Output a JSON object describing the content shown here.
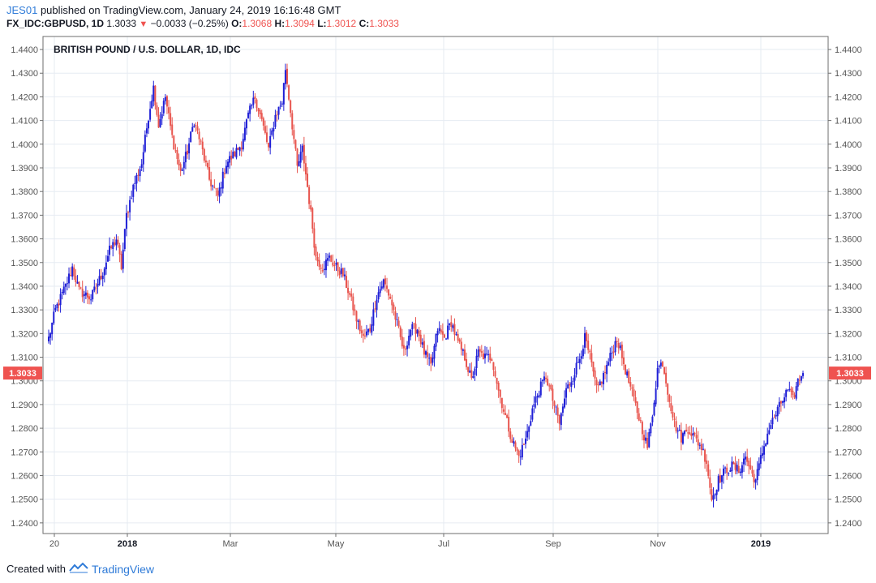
{
  "header": {
    "user": "JES01",
    "published_text": "published on TradingView.com, January 24, 2019 16:16:48 GMT",
    "symbol": "FX_IDC:GBPUSD, 1D",
    "last": "1.3033",
    "change": "−0.0033 (−0.25%)",
    "o_label": "O:",
    "o_value": "1.3068",
    "h_label": "H:",
    "h_value": "1.3094",
    "l_label": "L:",
    "l_value": "1.3012",
    "c_label": "C:",
    "c_value": "1.3033"
  },
  "footer": {
    "created_with": "Created with",
    "brand": "TradingView"
  },
  "colors": {
    "up": "#1f1fd6",
    "down": "#e8554e",
    "grid": "#e6ebf2",
    "axis": "#555555",
    "price_tag": "#ef5350"
  },
  "chart_data": {
    "type": "candlestick",
    "title": "BRITISH POUND / U.S. DOLLAR, 1D, IDC",
    "ylim": [
      1.2355,
      1.4455
    ],
    "y_ticks": [
      "1.2400",
      "1.2500",
      "1.2600",
      "1.2700",
      "1.2800",
      "1.2900",
      "1.3000",
      "1.3100",
      "1.3200",
      "1.3300",
      "1.3400",
      "1.3500",
      "1.3600",
      "1.3700",
      "1.3800",
      "1.3900",
      "1.4000",
      "1.4100",
      "1.4200",
      "1.4300",
      "1.4400"
    ],
    "x_ticks": [
      "20",
      "2018",
      "Mar",
      "May",
      "Jul",
      "Sep",
      "Nov",
      "2019"
    ],
    "x_tick_bold": [
      false,
      true,
      false,
      false,
      false,
      false,
      false,
      true
    ],
    "grid": true,
    "last_price": "1.3033",
    "close_anchors": [
      [
        0,
        1.318
      ],
      [
        4,
        1.33
      ],
      [
        10,
        1.34
      ],
      [
        14,
        1.348
      ],
      [
        18,
        1.338
      ],
      [
        25,
        1.335
      ],
      [
        32,
        1.346
      ],
      [
        36,
        1.355
      ],
      [
        40,
        1.36
      ],
      [
        43,
        1.348
      ],
      [
        46,
        1.37
      ],
      [
        50,
        1.382
      ],
      [
        55,
        1.392
      ],
      [
        59,
        1.412
      ],
      [
        62,
        1.424
      ],
      [
        65,
        1.408
      ],
      [
        69,
        1.42
      ],
      [
        73,
        1.403
      ],
      [
        78,
        1.388
      ],
      [
        82,
        1.397
      ],
      [
        86,
        1.41
      ],
      [
        90,
        1.4
      ],
      [
        95,
        1.385
      ],
      [
        100,
        1.378
      ],
      [
        105,
        1.392
      ],
      [
        110,
        1.396
      ],
      [
        114,
        1.4
      ],
      [
        118,
        1.412
      ],
      [
        122,
        1.42
      ],
      [
        126,
        1.41
      ],
      [
        130,
        1.398
      ],
      [
        134,
        1.412
      ],
      [
        138,
        1.418
      ],
      [
        140,
        1.432
      ],
      [
        142,
        1.42
      ],
      [
        144,
        1.408
      ],
      [
        147,
        1.39
      ],
      [
        150,
        1.398
      ],
      [
        153,
        1.382
      ],
      [
        156,
        1.365
      ],
      [
        158,
        1.352
      ],
      [
        162,
        1.348
      ],
      [
        166,
        1.352
      ],
      [
        170,
        1.348
      ],
      [
        174,
        1.345
      ],
      [
        178,
        1.336
      ],
      [
        182,
        1.326
      ],
      [
        186,
        1.318
      ],
      [
        190,
        1.322
      ],
      [
        194,
        1.336
      ],
      [
        198,
        1.342
      ],
      [
        202,
        1.335
      ],
      [
        206,
        1.324
      ],
      [
        210,
        1.312
      ],
      [
        214,
        1.322
      ],
      [
        218,
        1.322
      ],
      [
        222,
        1.312
      ],
      [
        226,
        1.306
      ],
      [
        230,
        1.322
      ],
      [
        234,
        1.318
      ],
      [
        238,
        1.325
      ],
      [
        242,
        1.316
      ],
      [
        246,
        1.31
      ],
      [
        250,
        1.3
      ],
      [
        254,
        1.312
      ],
      [
        258,
        1.31
      ],
      [
        262,
        1.31
      ],
      [
        266,
        1.296
      ],
      [
        270,
        1.285
      ],
      [
        274,
        1.275
      ],
      [
        278,
        1.268
      ],
      [
        282,
        1.275
      ],
      [
        286,
        1.288
      ],
      [
        290,
        1.296
      ],
      [
        294,
        1.302
      ],
      [
        298,
        1.292
      ],
      [
        302,
        1.282
      ],
      [
        306,
        1.296
      ],
      [
        310,
        1.302
      ],
      [
        314,
        1.31
      ],
      [
        317,
        1.318
      ],
      [
        320,
        1.31
      ],
      [
        324,
        1.296
      ],
      [
        328,
        1.302
      ],
      [
        332,
        1.31
      ],
      [
        336,
        1.318
      ],
      [
        339,
        1.31
      ],
      [
        342,
        1.302
      ],
      [
        346,
        1.292
      ],
      [
        350,
        1.282
      ],
      [
        354,
        1.272
      ],
      [
        357,
        1.286
      ],
      [
        360,
        1.305
      ],
      [
        363,
        1.308
      ],
      [
        366,
        1.296
      ],
      [
        370,
        1.282
      ],
      [
        374,
        1.276
      ],
      [
        378,
        1.28
      ],
      [
        382,
        1.276
      ],
      [
        386,
        1.272
      ],
      [
        389,
        1.266
      ],
      [
        392,
        1.25
      ],
      [
        396,
        1.258
      ],
      [
        400,
        1.262
      ],
      [
        404,
        1.264
      ],
      [
        408,
        1.262
      ],
      [
        412,
        1.268
      ],
      [
        415,
        1.262
      ],
      [
        418,
        1.258
      ],
      [
        422,
        1.27
      ],
      [
        426,
        1.28
      ],
      [
        430,
        1.286
      ],
      [
        434,
        1.292
      ],
      [
        437,
        1.296
      ],
      [
        440,
        1.292
      ],
      [
        443,
        1.3
      ],
      [
        446,
        1.3033
      ]
    ]
  }
}
